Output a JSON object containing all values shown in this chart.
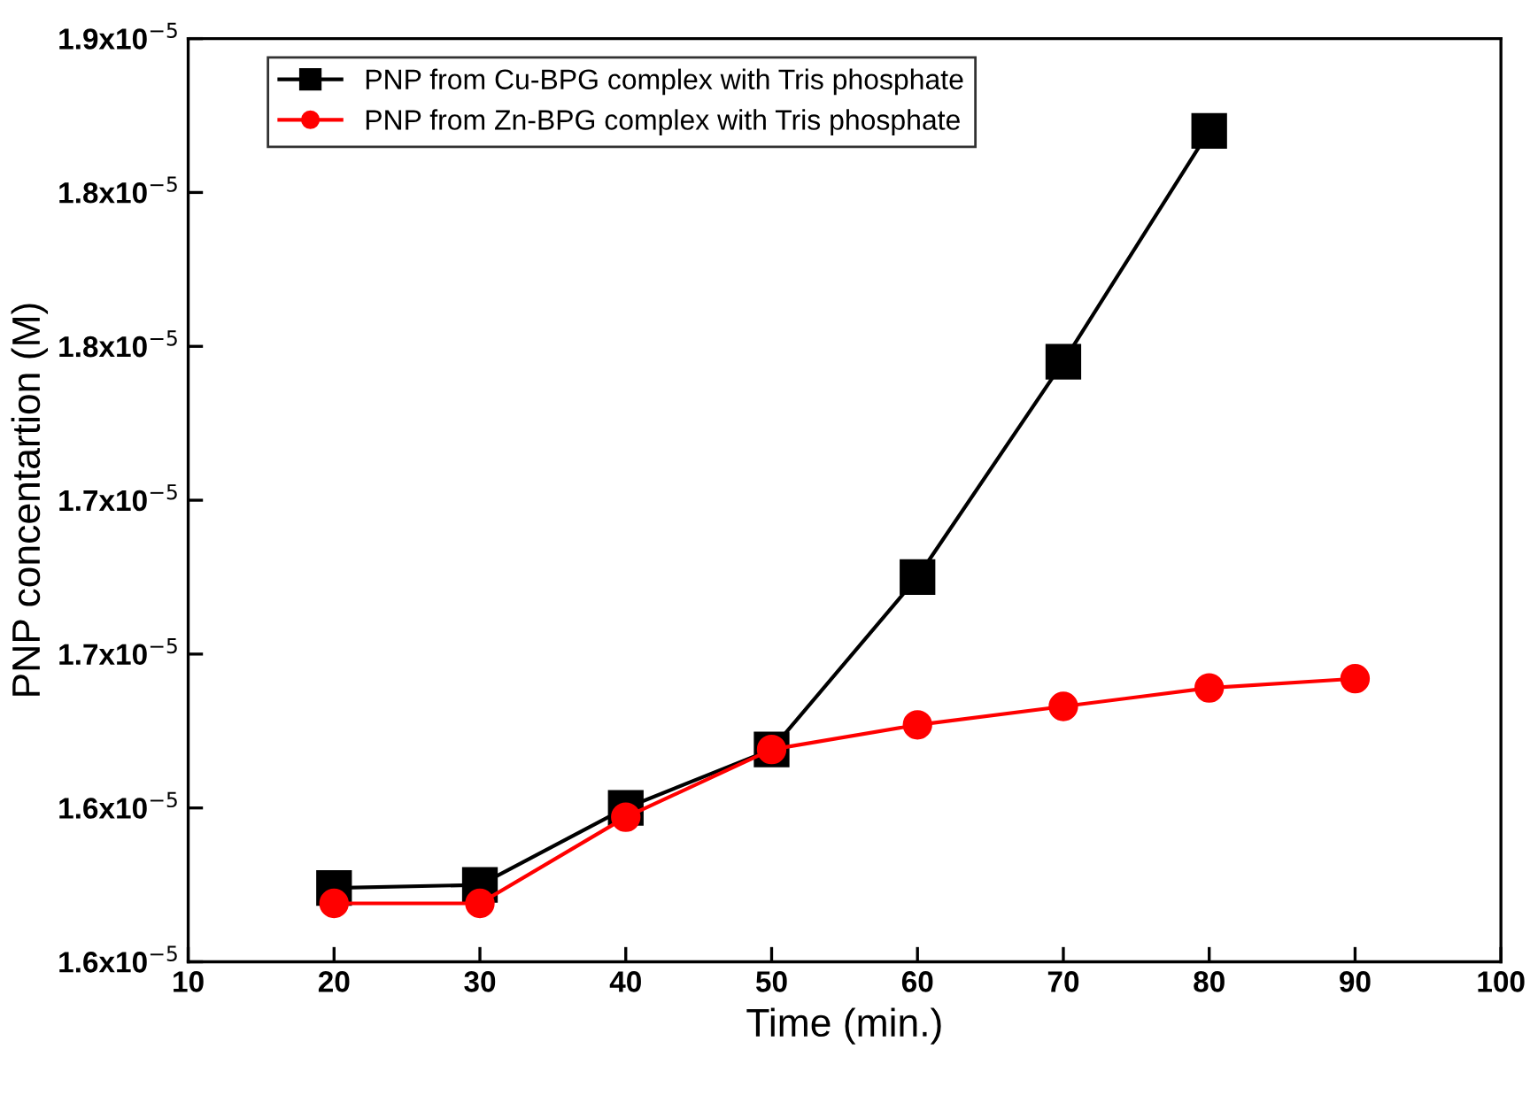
{
  "chart_data": {
    "type": "line",
    "xlabel": "Time (min.)",
    "ylabel": "PNP concentartion (M)",
    "x": [
      20,
      30,
      40,
      50,
      60,
      70,
      80,
      90
    ],
    "series": [
      {
        "name": "PNP from Cu-BPG complex with Tris phosphate",
        "color": "#000000",
        "marker": "square",
        "values": [
          1.574e-05,
          1.575e-05,
          1.6e-05,
          1.619e-05,
          1.675e-05,
          1.745e-05,
          1.82e-05,
          null
        ]
      },
      {
        "name": "PNP from Zn-BPG complex with Tris phosphate",
        "color": "#ff0000",
        "marker": "circle",
        "values": [
          1.569e-05,
          1.569e-05,
          1.597e-05,
          1.619e-05,
          1.627e-05,
          1.633e-05,
          1.639e-05,
          1.642e-05
        ]
      }
    ],
    "xlim": [
      10,
      100
    ],
    "xticks": [
      10,
      20,
      30,
      40,
      50,
      60,
      70,
      80,
      90,
      100
    ],
    "ylim": [
      1.55e-05,
      1.85e-05
    ],
    "yticks": [
      {
        "value": 1.55e-05,
        "label": "1.6x10$^{−5}$"
      },
      {
        "value": 1.6e-05,
        "label": "1.6x10$^{−5}$"
      },
      {
        "value": 1.65e-05,
        "label": "1.7x10$^{−5}$"
      },
      {
        "value": 1.7e-05,
        "label": "1.7x10$^{−5}$"
      },
      {
        "value": 1.75e-05,
        "label": "1.8x10$^{−5}$"
      },
      {
        "value": 1.8e-05,
        "label": "1.8x10$^{−5}$"
      },
      {
        "value": 1.85e-05,
        "label": "1.9x10$^{−5}$"
      }
    ],
    "legend": "top left",
    "line_style": "solid"
  }
}
